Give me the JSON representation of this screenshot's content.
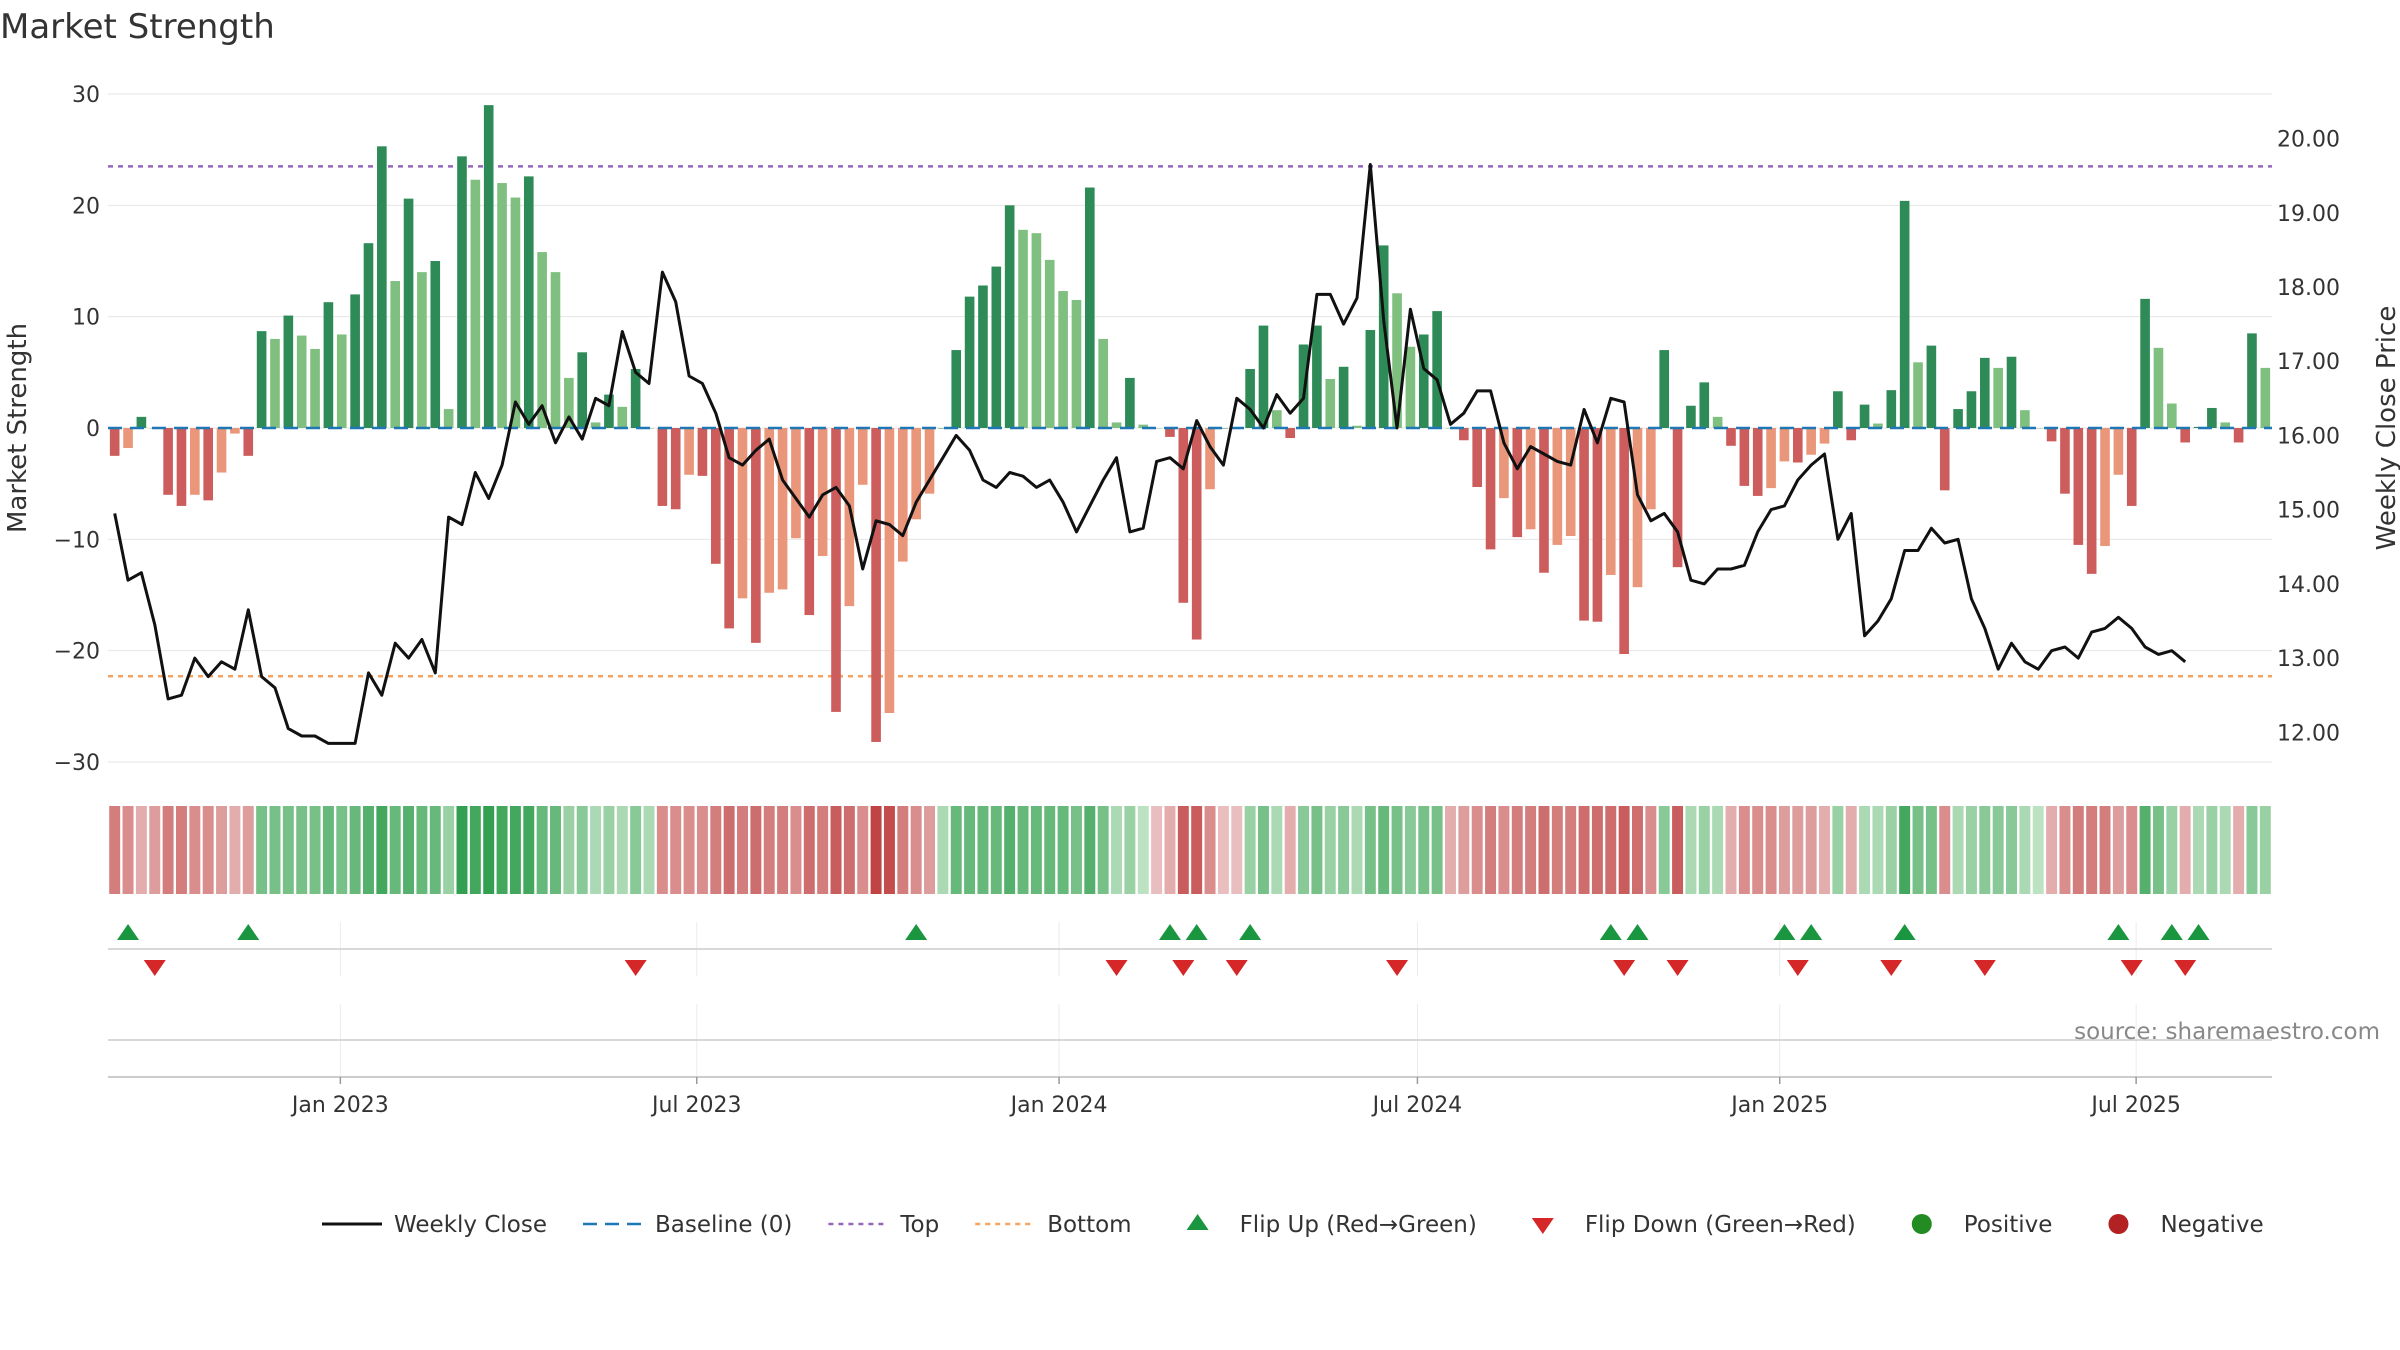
{
  "title": "Market Strength",
  "source": "source: sharemaestro.com",
  "colors": {
    "pos_strong": "#2e8b57",
    "pos_light": "#7fbf7f",
    "neg_strong": "#cd5c5c",
    "neg_light": "#e9967a",
    "close": "#111111",
    "baseline": "#1f77b4",
    "top": "#9467bd",
    "bottom": "#f4a460",
    "flip_up": "#1a9641",
    "flip_down": "#d62728",
    "positive": "#228b22",
    "negative": "#b22222"
  },
  "chart_data": {
    "type": "bar+line",
    "title": "Market Strength",
    "ylabel_left": "Market Strength",
    "ylabel_right": "Weekly Close Price",
    "ylim_left": [
      -30,
      30
    ],
    "yticks_left": [
      30,
      20,
      10,
      0,
      -10,
      -20,
      -30
    ],
    "ytick_labels_left": [
      "30",
      "20",
      "10",
      "0",
      "−10",
      "−20",
      "−30"
    ],
    "ylim_right": [
      11.6,
      20.6
    ],
    "yticks_right": [
      20,
      19,
      18,
      17,
      16,
      15,
      14,
      13,
      12
    ],
    "ytick_labels_right": [
      "20.00",
      "19.00",
      "18.00",
      "17.00",
      "16.00",
      "15.00",
      "14.00",
      "13.00",
      "12.00"
    ],
    "x_start": "2022-09-05",
    "x_end": "2025-09-08",
    "x_ticks": [
      {
        "date": "2023-01-01",
        "label": "Jan 2023"
      },
      {
        "date": "2023-07-01",
        "label": "Jul 2023"
      },
      {
        "date": "2024-01-01",
        "label": "Jan 2024"
      },
      {
        "date": "2024-07-01",
        "label": "Jul 2024"
      },
      {
        "date": "2025-01-01",
        "label": "Jan 2025"
      },
      {
        "date": "2025-07-01",
        "label": "Jul 2025"
      }
    ],
    "top_line": 23.5,
    "bottom_line": -22.3,
    "strength": [
      -2.5,
      -1.8,
      1,
      0,
      -6,
      -7,
      -6,
      -6.5,
      -4,
      -0.5,
      -2.5,
      8.7,
      8,
      10.1,
      8.3,
      7.1,
      11.3,
      8.4,
      12,
      16.6,
      25.3,
      13.2,
      20.6,
      14,
      15,
      1.7,
      24.4,
      22.3,
      29,
      22,
      20.7,
      22.6,
      15.8,
      14,
      4.5,
      6.8,
      0.5,
      3,
      1.9,
      5.3,
      0,
      -7,
      -7.3,
      -4.2,
      -4.3,
      -12.2,
      -18,
      -15.3,
      -19.3,
      -14.8,
      -14.5,
      -9.9,
      -16.8,
      -11.5,
      -25.5,
      -16,
      -5.1,
      -28.2,
      -25.6,
      -12,
      -8.2,
      -5.9,
      0,
      7,
      11.8,
      12.8,
      14.5,
      20,
      17.8,
      17.5,
      15.1,
      12.3,
      11.5,
      21.6,
      8,
      0.5,
      4.5,
      0.3,
      0,
      -0.8,
      -15.7,
      -19,
      -5.5,
      0,
      -0.1,
      5.3,
      9.2,
      1.6,
      -0.9,
      7.5,
      9.2,
      4.4,
      5.5,
      0.2,
      8.8,
      16.4,
      12.1,
      7.3,
      8.4,
      10.5,
      0,
      -1.1,
      -5.3,
      -10.9,
      -6.3,
      -9.8,
      -9.1,
      -13,
      -10.5,
      -9.7,
      -17.3,
      -17.4,
      -13.2,
      -20.3,
      -14.3,
      -7.3,
      7,
      -12.5,
      2,
      4.1,
      1,
      -1.6,
      -5.2,
      -6.1,
      -5.4,
      -3,
      -3.1,
      -2.4,
      -1.4,
      3.3,
      -1.1,
      2.1,
      0.4,
      3.4,
      20.4,
      5.9,
      7.4,
      -5.6,
      1.7,
      3.3,
      6.3,
      5.4,
      6.4,
      1.6,
      0,
      -1.2,
      -5.9,
      -10.5,
      -13.1,
      -10.6,
      -4.2,
      -7,
      11.6,
      7.2,
      2.2,
      -1.3,
      0.1,
      1.8,
      0.5,
      -1.3,
      8.5,
      5.4
    ],
    "weekly_close": [
      14.95,
      14.05,
      14.15,
      13.45,
      12.45,
      12.5,
      13,
      12.75,
      12.95,
      12.85,
      13.65,
      12.75,
      12.6,
      12.05,
      11.95,
      11.95,
      11.85,
      11.85,
      11.85,
      12.8,
      12.5,
      13.2,
      13,
      13.25,
      12.8,
      14.9,
      14.8,
      15.5,
      15.15,
      15.6,
      16.45,
      16.15,
      16.4,
      15.9,
      16.25,
      15.95,
      16.5,
      16.4,
      17.4,
      16.85,
      16.7,
      18.2,
      17.8,
      16.8,
      16.7,
      16.3,
      15.7,
      15.6,
      15.8,
      15.95,
      15.4,
      15.15,
      14.9,
      15.2,
      15.3,
      15.05,
      14.2,
      14.85,
      14.8,
      14.65,
      15.1,
      15.4,
      15.7,
      16,
      15.8,
      15.4,
      15.3,
      15.5,
      15.45,
      15.3,
      15.4,
      15.1,
      14.7,
      15.05,
      15.4,
      15.7,
      14.7,
      14.75,
      15.65,
      15.7,
      15.55,
      16.2,
      15.85,
      15.6,
      16.5,
      16.35,
      16.1,
      16.55,
      16.3,
      16.5,
      17.9,
      17.9,
      17.5,
      17.85,
      19.65,
      17.55,
      16.1,
      17.7,
      16.9,
      16.75,
      16.15,
      16.3,
      16.6,
      16.6,
      15.9,
      15.55,
      15.85,
      15.75,
      15.65,
      15.6,
      16.35,
      15.9,
      16.5,
      16.45,
      15.2,
      14.85,
      14.95,
      14.7,
      14.05,
      14,
      14.2,
      14.2,
      14.25,
      14.7,
      15,
      15.05,
      15.4,
      15.6,
      15.75,
      14.6,
      14.95,
      13.3,
      13.5,
      13.8,
      14.45,
      14.45,
      14.75,
      14.55,
      14.6,
      13.8,
      13.4,
      12.85,
      13.2,
      12.95,
      12.85,
      13.1,
      13.15,
      13,
      13.35,
      13.4,
      13.55,
      13.4,
      13.15,
      13.05,
      13.1,
      12.95
    ],
    "daily_heat": [
      -0.6,
      -0.5,
      -0.3,
      -0.4,
      -0.6,
      -0.6,
      -0.5,
      -0.5,
      -0.4,
      -0.3,
      -0.4,
      0.6,
      0.6,
      0.6,
      0.6,
      0.6,
      0.7,
      0.6,
      0.7,
      0.8,
      0.9,
      0.7,
      0.8,
      0.7,
      0.7,
      0.4,
      1,
      0.9,
      1,
      0.9,
      0.9,
      0.9,
      0.7,
      0.7,
      0.4,
      0.5,
      0.3,
      0.4,
      0.3,
      0.5,
      0.3,
      -0.5,
      -0.5,
      -0.5,
      -0.5,
      -0.6,
      -0.7,
      -0.6,
      -0.7,
      -0.6,
      -0.6,
      -0.5,
      -0.7,
      -0.6,
      -0.8,
      -0.7,
      -0.5,
      -0.95,
      -0.9,
      -0.6,
      -0.5,
      -0.4,
      0.3,
      0.7,
      0.7,
      0.7,
      0.7,
      0.8,
      0.7,
      0.7,
      0.7,
      0.7,
      0.6,
      0.8,
      0.6,
      0.3,
      0.4,
      0.2,
      -0.2,
      -0.3,
      -0.8,
      -0.8,
      -0.5,
      -0.2,
      -0.2,
      0.4,
      0.6,
      0.3,
      -0.3,
      0.5,
      0.6,
      0.4,
      0.5,
      0.3,
      0.6,
      0.7,
      0.6,
      0.5,
      0.6,
      0.6,
      -0.3,
      -0.4,
      -0.5,
      -0.6,
      -0.5,
      -0.6,
      -0.6,
      -0.7,
      -0.6,
      -0.6,
      -0.7,
      -0.7,
      -0.7,
      -0.8,
      -0.7,
      -0.5,
      0.5,
      -0.8,
      0.3,
      0.4,
      0.3,
      -0.3,
      -0.5,
      -0.5,
      -0.5,
      -0.4,
      -0.4,
      -0.4,
      -0.3,
      0.4,
      -0.3,
      0.3,
      0.3,
      0.4,
      0.9,
      0.6,
      0.6,
      -0.5,
      0.3,
      0.4,
      0.5,
      0.5,
      0.5,
      0.3,
      0.2,
      -0.3,
      -0.5,
      -0.6,
      -0.6,
      -0.6,
      -0.4,
      -0.5,
      0.8,
      0.6,
      0.4,
      -0.3,
      0.3,
      0.4,
      0.3,
      -0.3,
      0.5,
      0.4
    ],
    "flip_up_weeks": [
      1,
      10,
      60,
      79,
      81,
      85,
      112,
      114,
      125,
      127,
      134,
      150,
      154,
      156
    ],
    "flip_down_weeks": [
      3,
      39,
      75,
      80,
      84,
      96,
      113,
      117,
      126,
      133,
      140,
      151,
      155
    ],
    "series_names": [
      "Weekly Close",
      "Baseline (0)",
      "Top",
      "Bottom",
      "Flip Up (Red→Green)",
      "Flip Down (Green→Red)",
      "Positive",
      "Negative"
    ]
  },
  "legend": [
    {
      "key": "close",
      "label": "Weekly Close"
    },
    {
      "key": "baseline",
      "label": "Baseline (0)"
    },
    {
      "key": "top",
      "label": "Top"
    },
    {
      "key": "bottom",
      "label": "Bottom"
    },
    {
      "key": "flip_up",
      "label": "Flip Up (Red→Green)"
    },
    {
      "key": "flip_down",
      "label": "Flip Down (Green→Red)"
    },
    {
      "key": "positive",
      "label": "Positive"
    },
    {
      "key": "negative",
      "label": "Negative"
    }
  ]
}
